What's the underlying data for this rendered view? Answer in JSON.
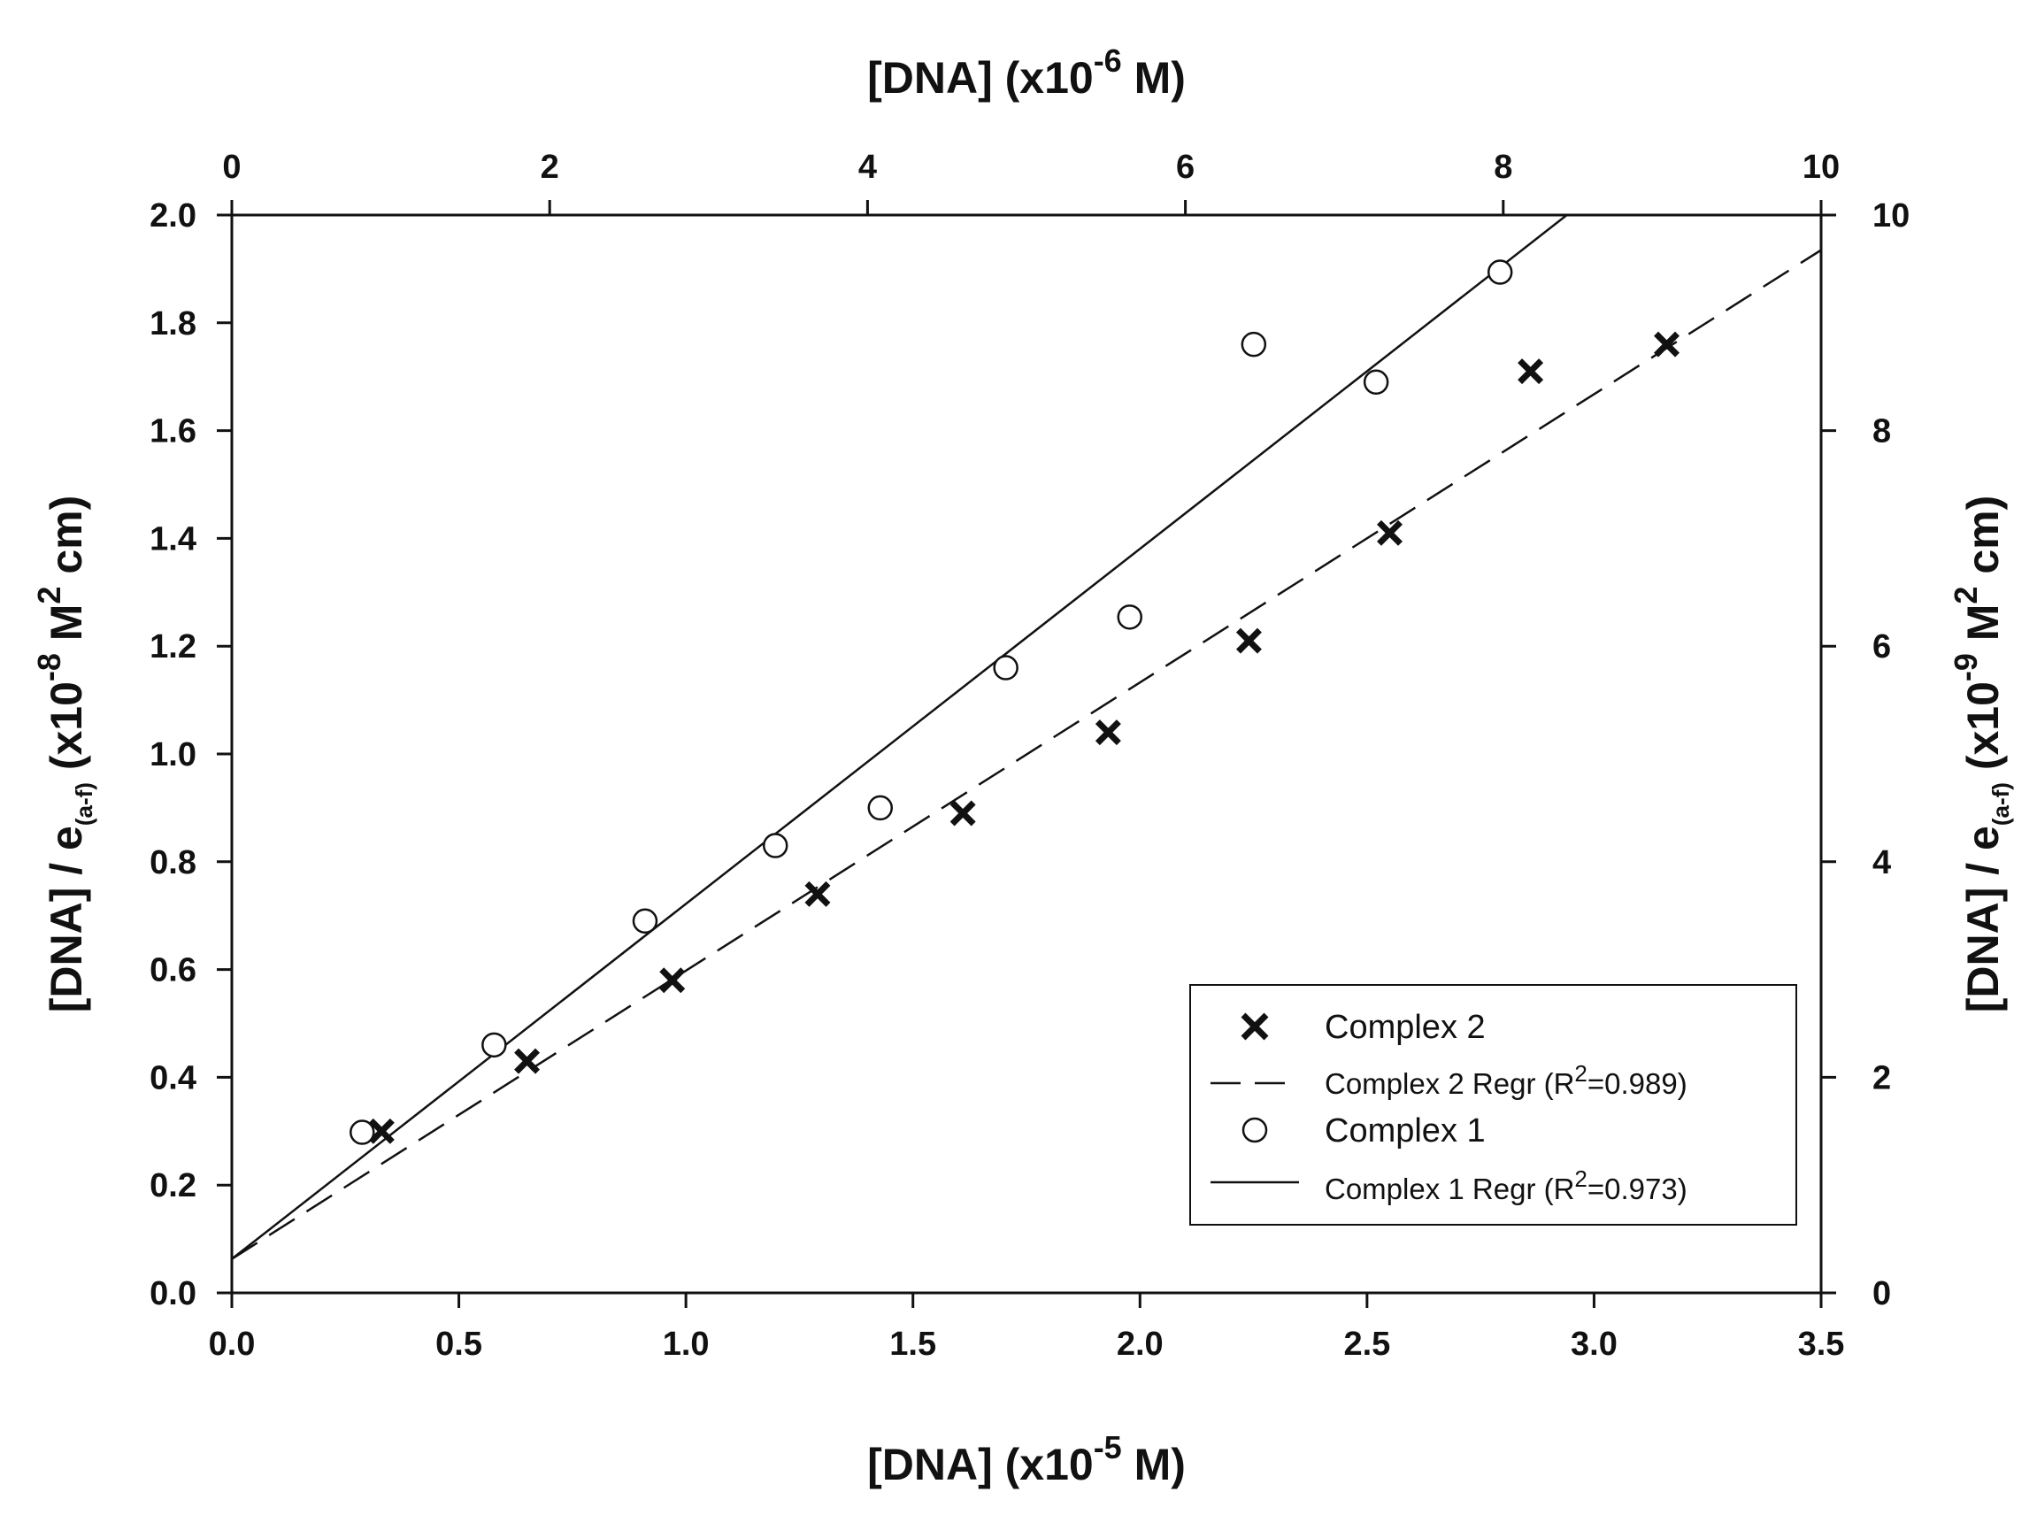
{
  "chart_data": {
    "type": "scatter",
    "axes": {
      "bottom": {
        "label": {
          "main": "[DNA] (x10",
          "sup": "-5",
          "tail": " M)"
        },
        "range": [
          0,
          3.5
        ],
        "ticks": [
          "0.0",
          "0.5",
          "1.0",
          "1.5",
          "2.0",
          "2.5",
          "3.0",
          "3.5"
        ]
      },
      "top": {
        "label": {
          "main": "[DNA] (x10",
          "sup": "-6",
          "tail": " M)"
        },
        "range": [
          0,
          10
        ],
        "ticks": [
          "0",
          "2",
          "4",
          "6",
          "8",
          "10"
        ]
      },
      "left": {
        "label": {
          "main": "[DNA] / e",
          "sub": "(a-f)",
          "mid": " (x10",
          "sup": "-8",
          "mid2": " M",
          "sup2": "2",
          "tail": " cm)"
        },
        "range": [
          0,
          2.0
        ],
        "ticks": [
          "0.0",
          "0.2",
          "0.4",
          "0.6",
          "0.8",
          "1.0",
          "1.2",
          "1.4",
          "1.6",
          "1.8",
          "2.0"
        ]
      },
      "right": {
        "label": {
          "main": "[DNA] / e",
          "sub": "(a-f)",
          "mid": " (x10",
          "sup": "-9",
          "mid2": " M",
          "sup2": "2",
          "tail": " cm)"
        },
        "range": [
          0,
          10
        ],
        "ticks": [
          "0",
          "2",
          "4",
          "6",
          "8",
          "10"
        ]
      }
    },
    "series": [
      {
        "name": "Complex 2",
        "marker": "x",
        "axes": "bottom-left",
        "x": [
          0.33,
          0.65,
          0.97,
          1.29,
          1.61,
          1.93,
          2.24,
          2.55,
          2.86,
          3.16
        ],
        "y": [
          0.3,
          0.43,
          0.58,
          0.74,
          0.89,
          1.04,
          1.21,
          1.41,
          1.71,
          1.76
        ]
      },
      {
        "name": "Complex 2 Regr (R2=0.989)",
        "line": "dashed",
        "axes": "bottom-left",
        "x": [
          0,
          3.5
        ],
        "y": [
          0.063,
          1.935
        ]
      },
      {
        "name": "Complex 1",
        "marker": "circle",
        "axes": "top-right",
        "x": [
          0.82,
          1.65,
          2.6,
          3.42,
          4.08,
          4.87,
          5.65,
          6.43,
          7.2,
          7.98
        ],
        "y": [
          1.49,
          2.3,
          3.45,
          4.15,
          4.5,
          5.8,
          6.27,
          8.8,
          8.45,
          9.47
        ]
      },
      {
        "name": "Complex 1 Regr (R2=0.973)",
        "line": "solid",
        "axes": "top-right",
        "x": [
          0,
          8.4
        ],
        "y": [
          0.315,
          10.0
        ]
      }
    ],
    "legend": {
      "placement": "bottom-right",
      "items": [
        {
          "label": "Complex 2",
          "kind": "x"
        },
        {
          "label_main": "Complex 2 Regr (R",
          "label_sup": "2",
          "label_tail": "=0.989)",
          "kind": "dashed"
        },
        {
          "label": "Complex 1",
          "kind": "circle"
        },
        {
          "label_main": "Complex 1 Regr (R",
          "label_sup": "2",
          "label_tail": "=0.973)",
          "kind": "solid"
        }
      ]
    },
    "grid": false
  }
}
